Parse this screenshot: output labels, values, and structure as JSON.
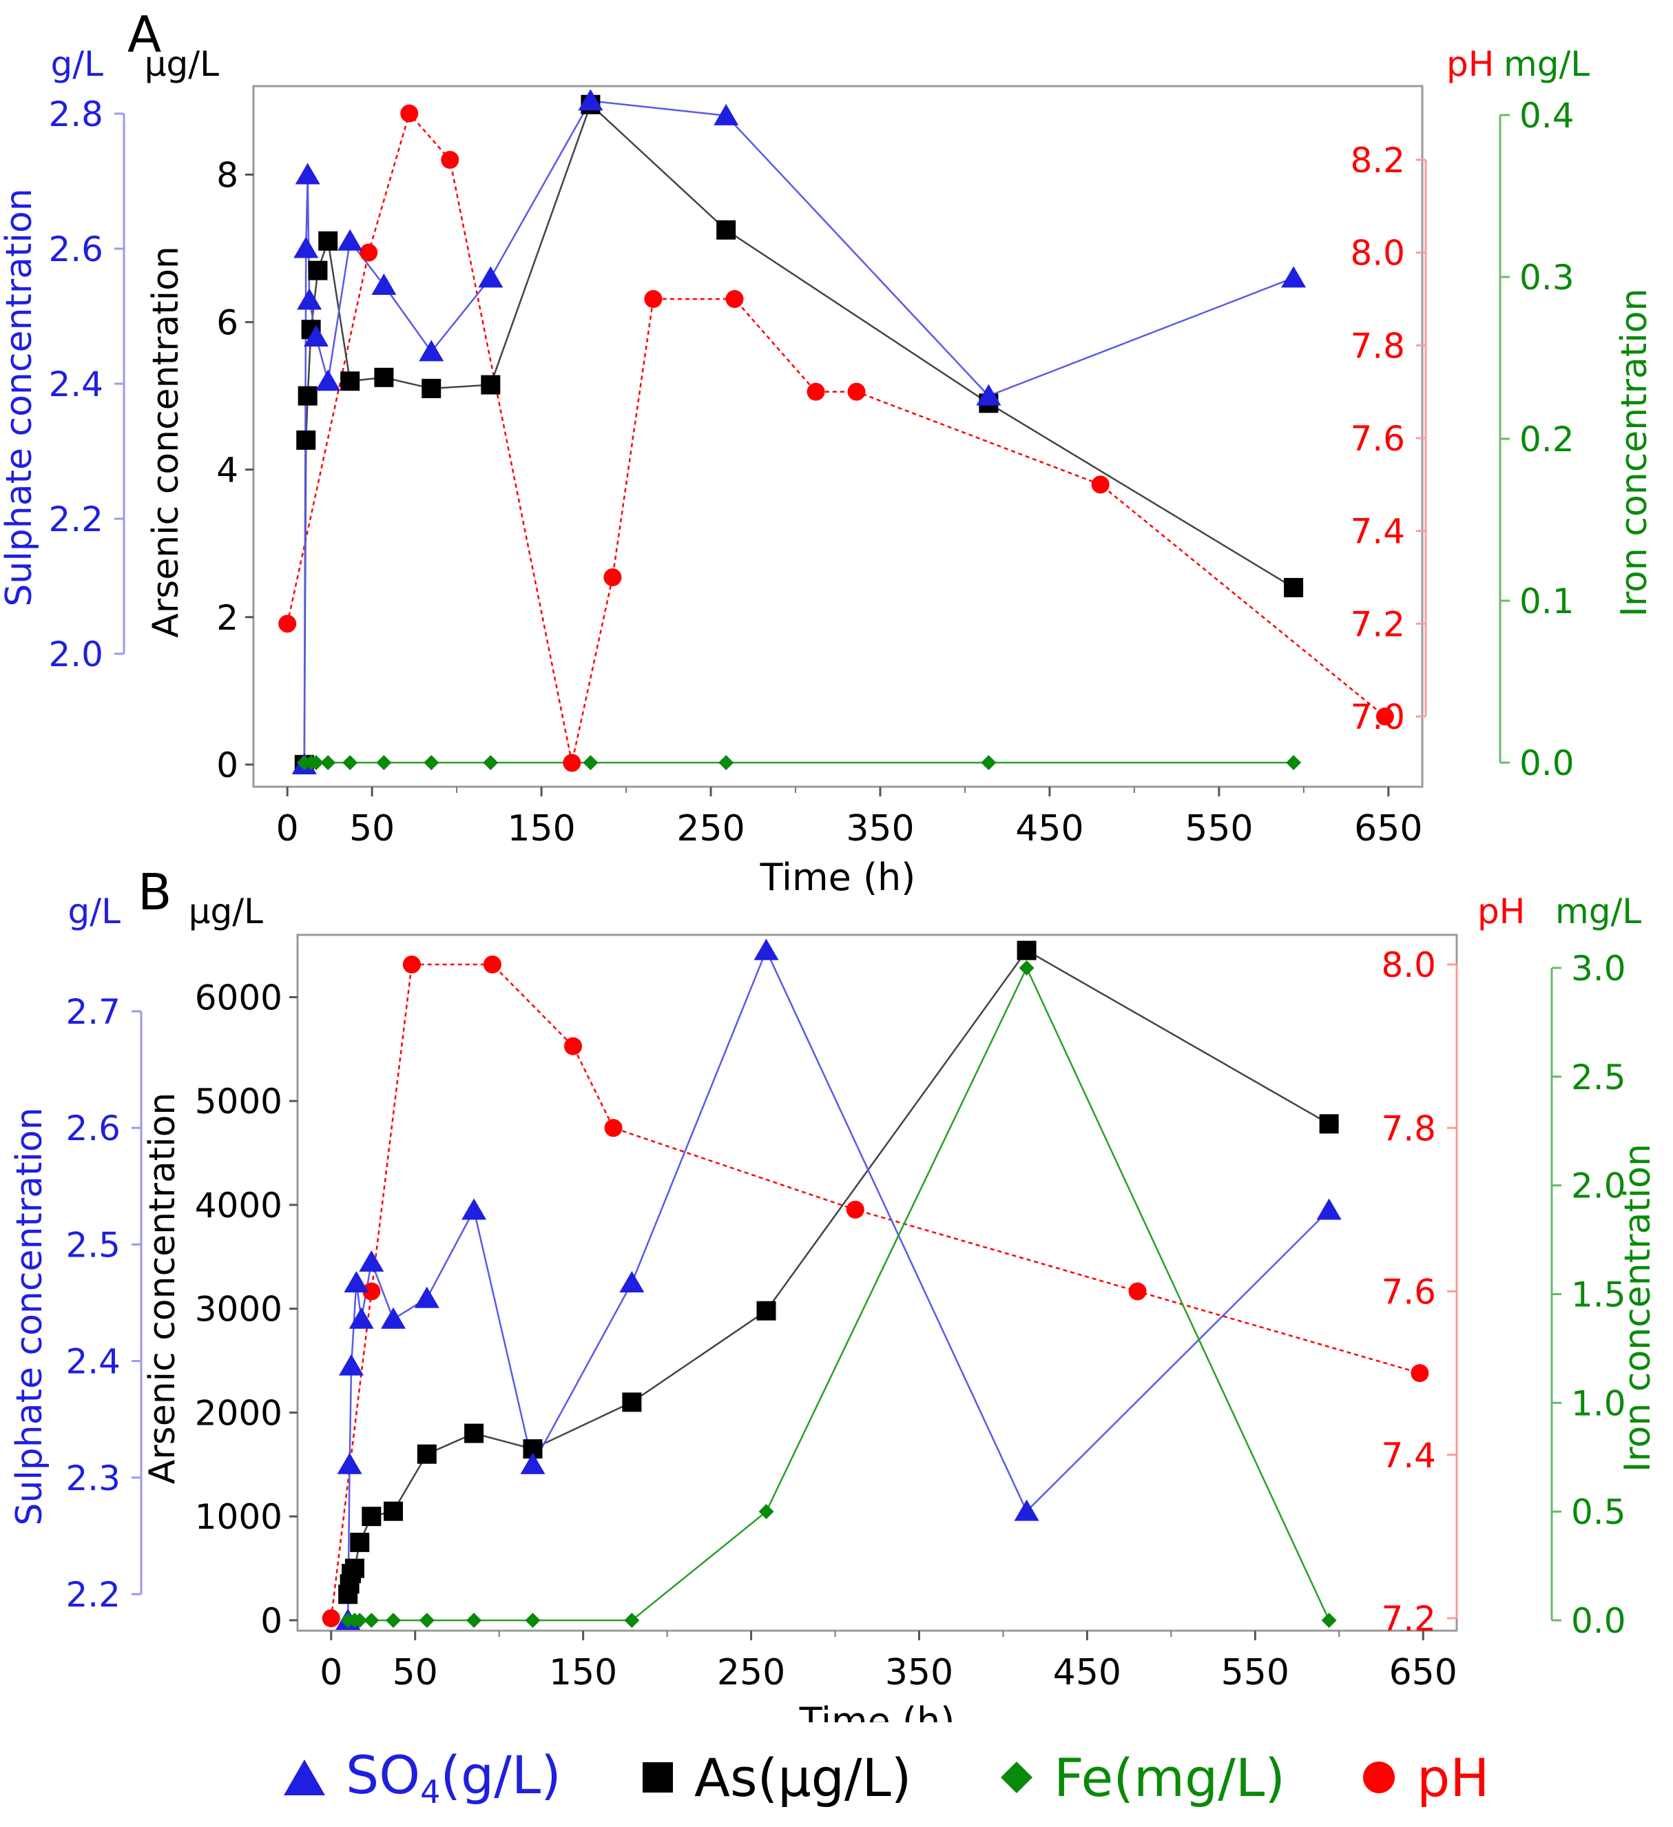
{
  "chart_data": [
    {
      "panel_label": "A",
      "type": "line",
      "xlabel": "Time (h)",
      "xticks": [
        0,
        50,
        150,
        250,
        350,
        450,
        550,
        650
      ],
      "xlim": [
        -20,
        670
      ],
      "axes": {
        "sulphate": {
          "label": "Sulphate concentration",
          "unit": "g/L",
          "ticks": [
            "2.0",
            "2.2",
            "2.4",
            "2.6",
            "2.8"
          ],
          "lim": [
            1.99,
            2.8
          ],
          "color": "#1f1fe0"
        },
        "arsenic": {
          "label": "Arsenic concentration",
          "unit": "μg/L",
          "ticks": [
            "0",
            "2",
            "4",
            "6",
            "8"
          ],
          "lim": [
            -0.3,
            9.2
          ],
          "color": "#000000"
        },
        "ph": {
          "label": "",
          "unit": "pH",
          "ticks": [
            "7.0",
            "7.2",
            "7.4",
            "7.6",
            "7.8",
            "8.0",
            "8.2"
          ],
          "lim": [
            6.9,
            8.3
          ],
          "color": "#ff0000"
        },
        "iron": {
          "label": "Iron concentration",
          "unit": "mg/L",
          "ticks": [
            "0.0",
            "0.1",
            "0.2",
            "0.3",
            "0.4"
          ],
          "lim": [
            0,
            0.4
          ],
          "color": "#0a8a0a"
        }
      },
      "series": [
        {
          "key": "SO4",
          "axis": "arsenic",
          "marker": "triangle",
          "color": "#1f1fe0",
          "line": "solid",
          "x": [
            10,
            11,
            12,
            13,
            17,
            24,
            37,
            57,
            85,
            120,
            179,
            259,
            414,
            594
          ],
          "y": [
            0,
            7.0,
            8.0,
            6.3,
            5.8,
            5.2,
            7.1,
            6.5,
            5.6,
            6.6,
            9.0,
            8.8,
            5.0,
            6.6
          ]
        },
        {
          "key": "As",
          "axis": "arsenic",
          "marker": "square",
          "color": "#000000",
          "line": "solid",
          "x": [
            10,
            11,
            12,
            14,
            18,
            24,
            37,
            57,
            85,
            120,
            179,
            259,
            414,
            594
          ],
          "y": [
            0,
            4.4,
            5.0,
            5.9,
            6.7,
            7.1,
            5.2,
            5.25,
            5.1,
            5.15,
            8.95,
            7.25,
            4.9,
            2.4
          ]
        },
        {
          "key": "Fe",
          "axis": "iron",
          "marker": "diamond",
          "color": "#0a8a0a",
          "line": "solid",
          "x": [
            10,
            14,
            17,
            24,
            37,
            57,
            85,
            120,
            179,
            259,
            414,
            594
          ],
          "y": [
            0,
            0,
            0,
            0,
            0,
            0,
            0,
            0,
            0,
            0,
            0,
            0
          ]
        },
        {
          "key": "pH",
          "axis": "ph",
          "marker": "circle",
          "color": "#ff0000",
          "line": "dotted",
          "x": [
            0,
            48,
            72,
            96,
            168,
            192,
            216,
            264,
            312,
            336,
            480,
            648
          ],
          "y": [
            7.2,
            8.0,
            8.3,
            8.2,
            6.9,
            7.3,
            7.9,
            7.9,
            7.7,
            7.7,
            7.5,
            7.0
          ]
        }
      ]
    },
    {
      "panel_label": "B",
      "type": "line",
      "xlabel": "Time (h)",
      "xticks": [
        0,
        50,
        150,
        250,
        350,
        450,
        550,
        650
      ],
      "xlim": [
        -20,
        670
      ],
      "axes": {
        "sulphate": {
          "label": "Sulphate concentration",
          "unit": "g/L",
          "ticks": [
            "2.2",
            "2.3",
            "2.4",
            "2.5",
            "2.6",
            "2.7"
          ],
          "lim": [
            2.2,
            2.7
          ],
          "color": "#1f1fe0"
        },
        "arsenic": {
          "label": "Arsenic concentration",
          "unit": "μg/L",
          "ticks": [
            "0",
            "1000",
            "2000",
            "3000",
            "4000",
            "5000",
            "6000"
          ],
          "lim": [
            -100,
            6600
          ],
          "color": "#000000"
        },
        "ph": {
          "label": "",
          "unit": "pH",
          "ticks": [
            "7.2",
            "7.4",
            "7.6",
            "7.8",
            "8.0"
          ],
          "lim": [
            7.2,
            8.0
          ],
          "color": "#ff0000"
        },
        "iron": {
          "label": "Iron concentration",
          "unit": "mg/L",
          "ticks": [
            "0.0",
            "0.5",
            "1.0",
            "1.5",
            "2.0",
            "2.5",
            "3.0"
          ],
          "lim": [
            0,
            3.0
          ],
          "color": "#0a8a0a"
        }
      },
      "series": [
        {
          "key": "SO4",
          "axis": "arsenic",
          "marker": "triangle",
          "color": "#1f1fe0",
          "line": "solid",
          "x": [
            10,
            11,
            12,
            15,
            18,
            24,
            37,
            57,
            85,
            120,
            179,
            259,
            414,
            594
          ],
          "y": [
            0,
            1500,
            2450,
            3250,
            2900,
            3450,
            2900,
            3100,
            3950,
            1500,
            3250,
            6450,
            1050,
            3950
          ]
        },
        {
          "key": "As",
          "axis": "arsenic",
          "marker": "square",
          "color": "#000000",
          "line": "solid",
          "x": [
            10,
            11,
            12,
            14,
            17,
            24,
            37,
            57,
            85,
            120,
            179,
            259,
            414,
            594
          ],
          "y": [
            250,
            350,
            450,
            500,
            750,
            1000,
            1050,
            1600,
            1800,
            1650,
            2100,
            2980,
            6450,
            4780
          ]
        },
        {
          "key": "Fe",
          "axis": "iron",
          "marker": "diamond",
          "color": "#0a8a0a",
          "line": "solid",
          "x": [
            10,
            14,
            17,
            24,
            37,
            57,
            85,
            120,
            179,
            259,
            414,
            594
          ],
          "y": [
            0,
            0,
            0,
            0,
            0,
            0,
            0,
            0,
            0,
            0.5,
            3.0,
            0
          ]
        },
        {
          "key": "pH",
          "axis": "ph",
          "marker": "circle",
          "color": "#ff0000",
          "line": "dotted",
          "x": [
            0,
            24,
            48,
            96,
            144,
            168,
            312,
            480,
            648
          ],
          "y": [
            7.2,
            7.6,
            8.0,
            8.0,
            7.9,
            7.8,
            7.7,
            7.6,
            7.5
          ]
        }
      ]
    }
  ],
  "legend": [
    {
      "key": "SO4",
      "label_main": "SO",
      "label_sub": "4",
      "label_rest": "(g/L)",
      "marker": "triangle",
      "color": "#1f1fe0"
    },
    {
      "key": "As",
      "label_main": "As(μg/L)",
      "label_sub": "",
      "label_rest": "",
      "marker": "square",
      "color": "#000000"
    },
    {
      "key": "Fe",
      "label_main": "Fe(mg/L)",
      "label_sub": "",
      "label_rest": "",
      "marker": "diamond",
      "color": "#0a8a0a"
    },
    {
      "key": "pH",
      "label_main": "pH",
      "label_sub": "",
      "label_rest": "",
      "marker": "circle",
      "color": "#ff0000"
    }
  ]
}
